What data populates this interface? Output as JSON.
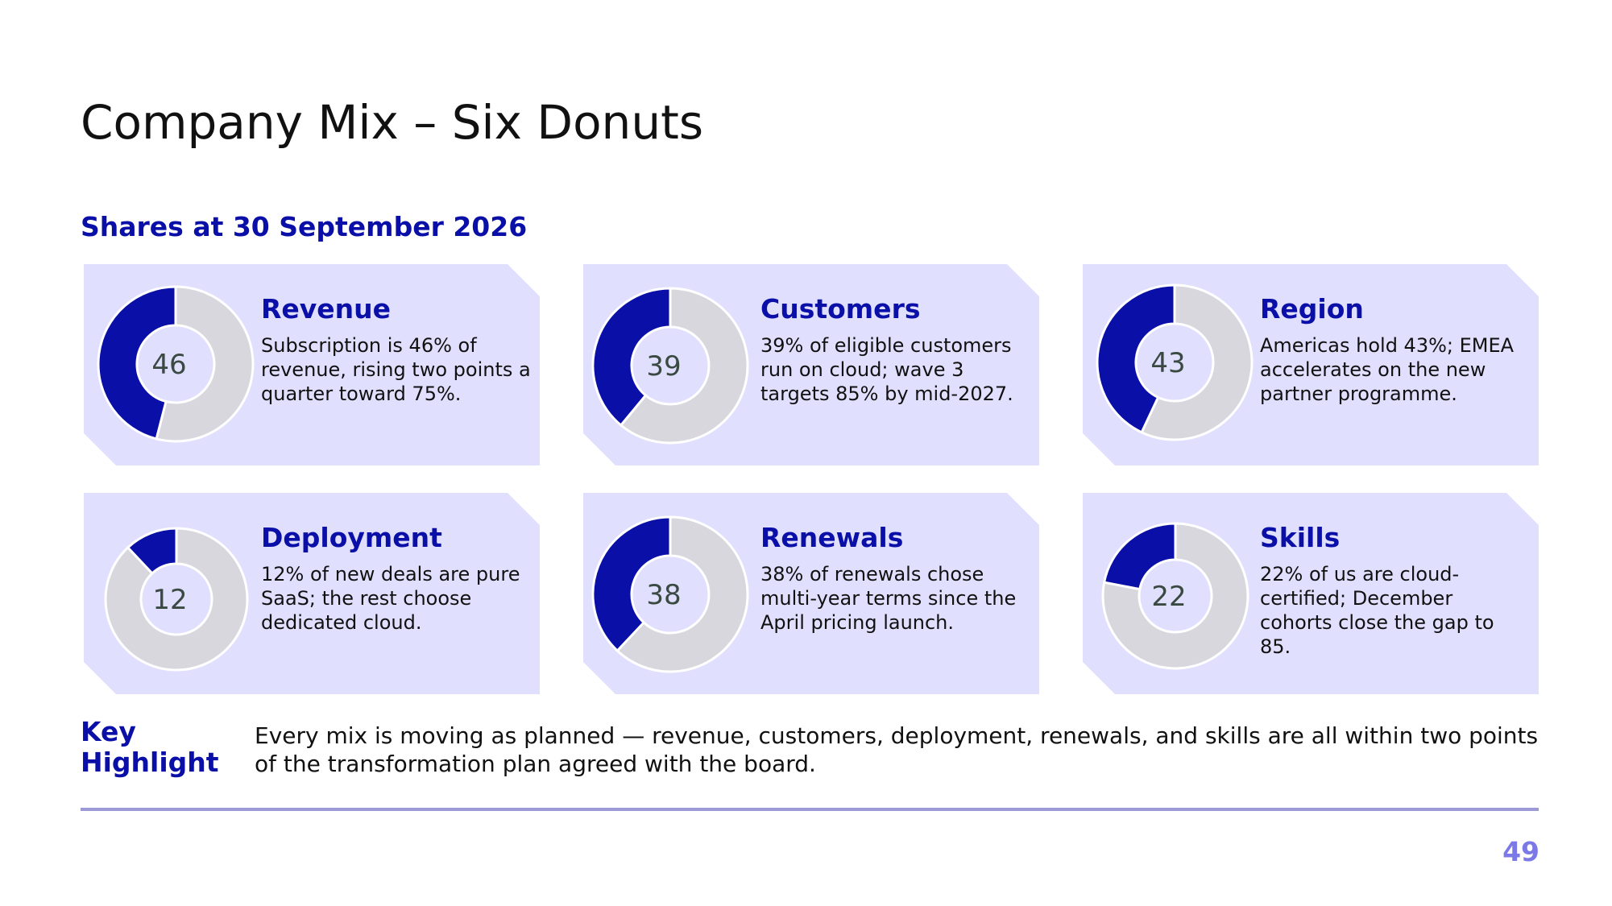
{
  "slide": {
    "title": "Company Mix – Six Donuts",
    "subtitle": "Shares at 30 September 2026",
    "key_label": "Key Highlight",
    "key_text": "Every mix is moving as planned — revenue, customers, deployment, renewals, and skills are all within two points of the transformation plan agreed with the board.",
    "page_number": "49"
  },
  "colors": {
    "accent": "#0a0fa8",
    "remainder": "#d9d7de",
    "card_bg": "#e0dffe",
    "value_text": "#3a4a42",
    "page_number": "#7b78e8"
  },
  "chart_data": {
    "type": "pie",
    "variant": "donut",
    "charts": [
      {
        "title": "Revenue",
        "value": 46,
        "label": "46",
        "text": "Subscription is 46% of revenue, rising two points a quarter toward 75%."
      },
      {
        "title": "Customers",
        "value": 39,
        "label": "39",
        "text": "39% of eligible customers run on cloud; wave 3 targets 85% by mid-2027."
      },
      {
        "title": "Region",
        "value": 43,
        "label": "43",
        "text": "Americas hold 43%; EMEA accelerates on the new partner programme."
      },
      {
        "title": "Deployment",
        "value": 12,
        "label": "12",
        "text": "12% of new deals are pure SaaS; the rest choose dedicated cloud."
      },
      {
        "title": "Renewals",
        "value": 38,
        "label": "38",
        "text": "38% of renewals chose multi-year terms since the April pricing launch."
      },
      {
        "title": "Skills",
        "value": 22,
        "label": "22",
        "text": "22% of us are cloud-certified; December cohorts close the gap to 85."
      }
    ]
  }
}
